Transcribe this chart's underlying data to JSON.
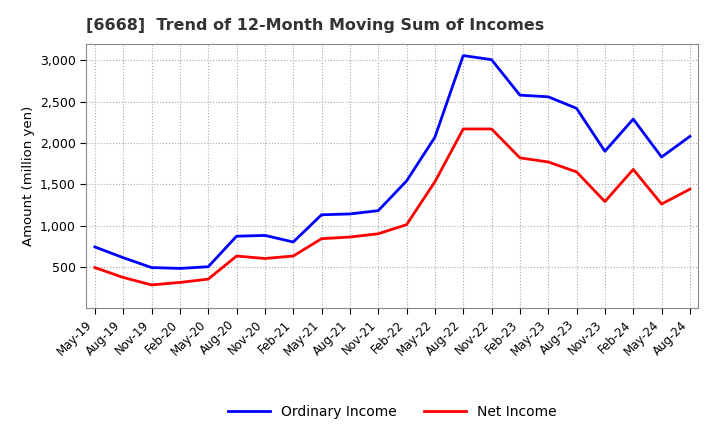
{
  "title": "[6668]  Trend of 12-Month Moving Sum of Incomes",
  "ylabel": "Amount (million yen)",
  "ylim": [
    0,
    3200
  ],
  "yticks": [
    500,
    1000,
    1500,
    2000,
    2500,
    3000
  ],
  "line_colors": {
    "ordinary": "#0000ff",
    "net": "#ff0000"
  },
  "legend_labels": [
    "Ordinary Income",
    "Net Income"
  ],
  "x_labels": [
    "May-19",
    "Aug-19",
    "Nov-19",
    "Feb-20",
    "May-20",
    "Aug-20",
    "Nov-20",
    "Feb-21",
    "May-21",
    "Aug-21",
    "Nov-21",
    "Feb-22",
    "May-22",
    "Aug-22",
    "Nov-22",
    "Feb-23",
    "May-23",
    "Aug-23",
    "Nov-23",
    "Feb-24",
    "May-24",
    "Aug-24"
  ],
  "ordinary_income": [
    740,
    610,
    490,
    480,
    500,
    870,
    880,
    800,
    1130,
    1140,
    1180,
    1540,
    2070,
    3060,
    3010,
    2580,
    2560,
    2420,
    1900,
    2290,
    1830,
    2080
  ],
  "net_income": [
    490,
    370,
    280,
    310,
    350,
    630,
    600,
    630,
    840,
    860,
    900,
    1010,
    1530,
    2170,
    2170,
    1820,
    1770,
    1650,
    1290,
    1680,
    1260,
    1440
  ]
}
